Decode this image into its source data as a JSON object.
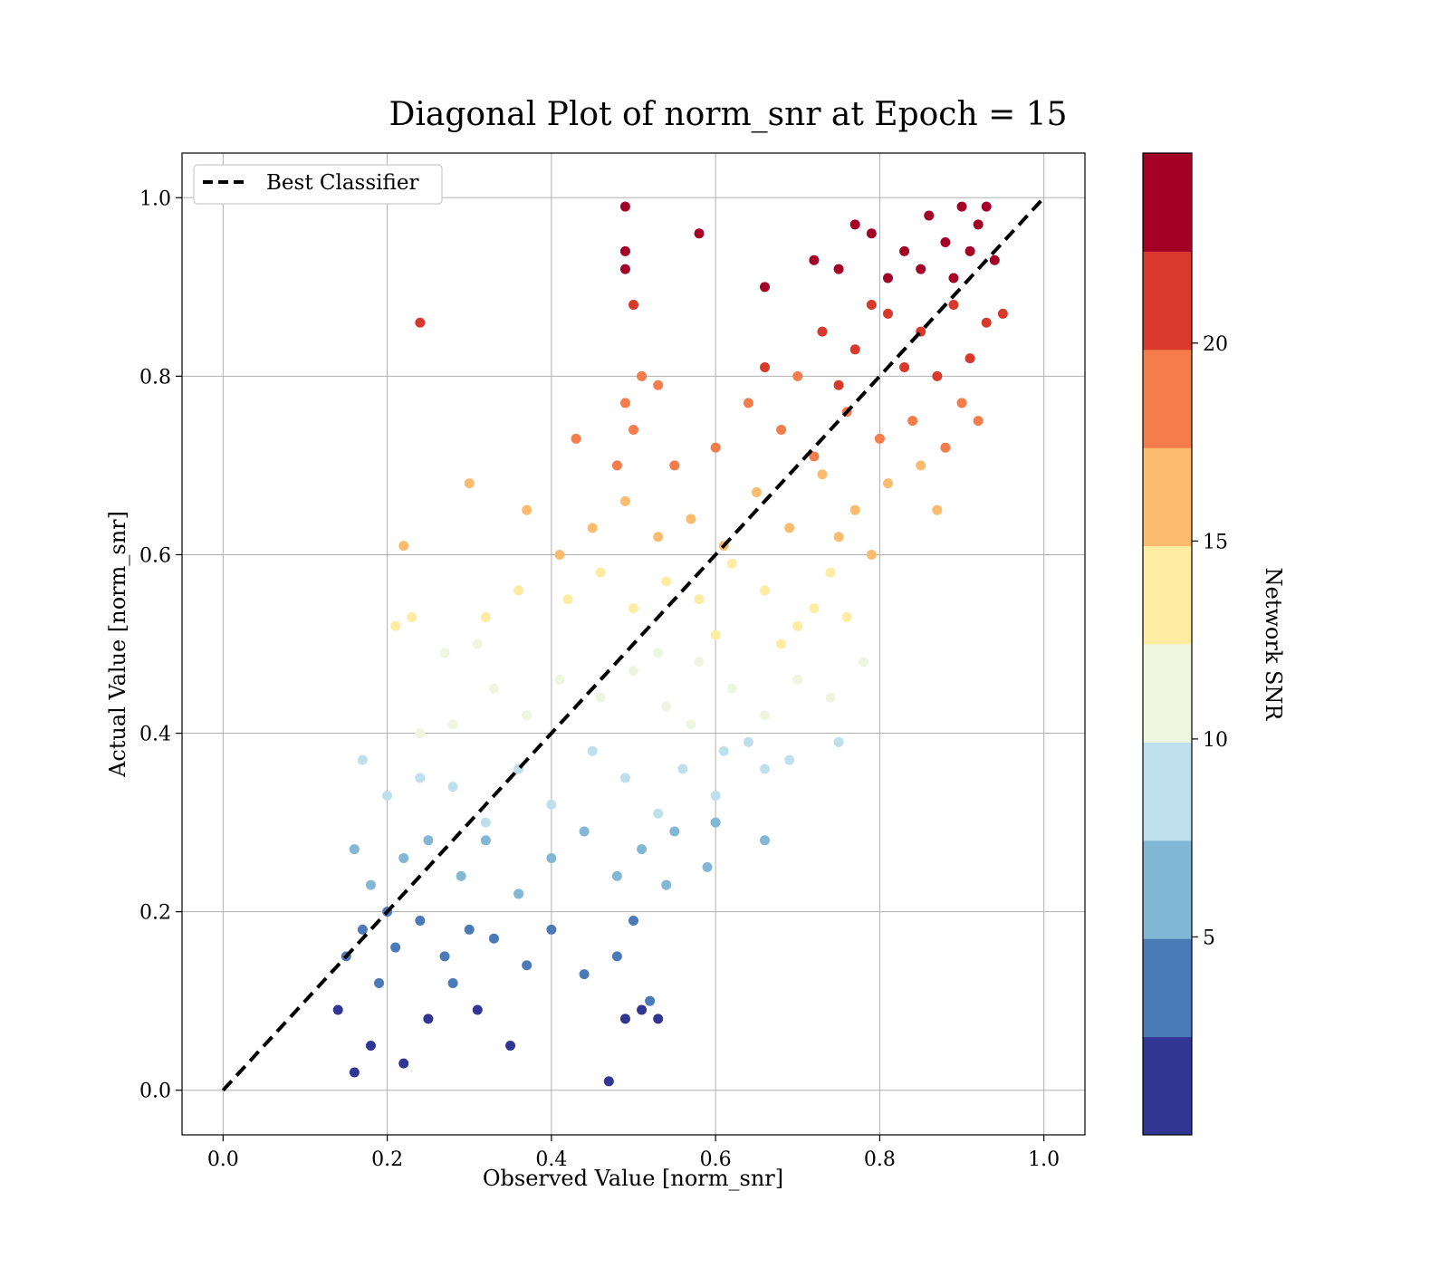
{
  "chart_data": {
    "type": "scatter",
    "title": "Diagonal Plot of norm_snr at Epoch = 15",
    "xlabel": "Observed Value [norm_snr]",
    "ylabel": "Actual Value [norm_snr]",
    "xlim": [
      -0.05,
      1.05
    ],
    "ylim": [
      -0.05,
      1.05
    ],
    "xticks": [
      "0.0",
      "0.2",
      "0.4",
      "0.6",
      "0.8",
      "1.0"
    ],
    "yticks": [
      "0.0",
      "0.2",
      "0.4",
      "0.6",
      "0.8",
      "1.0"
    ],
    "grid": true,
    "legend": {
      "placement": "top-left",
      "entries": [
        "Best Classifier"
      ]
    },
    "reference_line": {
      "name": "Best Classifier",
      "style": "dashed",
      "color": "#000000",
      "x": [
        0.0,
        1.0
      ],
      "y": [
        0.0,
        1.0
      ]
    },
    "colorbar": {
      "label": "Network SNR",
      "ticks": [
        "5",
        "10",
        "15",
        "20"
      ],
      "tick_values": [
        5,
        10,
        15,
        20
      ],
      "range": [
        0,
        24.8
      ],
      "levels": [
        "#313695",
        "#4575b4",
        "#74add1",
        "#abd9e9",
        "#e0f3f8",
        "#fee090",
        "#fdae61",
        "#f46d43",
        "#d73027",
        "#a50026"
      ],
      "level_colors": [
        "#313695",
        "#4a7ab7",
        "#82b7d6",
        "#bee0ec",
        "#eef6df",
        "#fdeca2",
        "#fbbc70",
        "#f57c4b",
        "#d8392a",
        "#a50026"
      ]
    },
    "scatter_points": {
      "note_on_values": "color of each point encodes Network SNR",
      "points": [
        [
          0.2,
          0.2,
          4.5
        ],
        [
          0.14,
          0.09,
          2
        ],
        [
          0.16,
          0.02,
          1
        ],
        [
          0.18,
          0.05,
          1.5
        ],
        [
          0.22,
          0.03,
          1
        ],
        [
          0.25,
          0.08,
          2
        ],
        [
          0.28,
          0.12,
          4
        ],
        [
          0.31,
          0.09,
          2
        ],
        [
          0.35,
          0.05,
          1
        ],
        [
          0.15,
          0.15,
          3.5
        ],
        [
          0.17,
          0.18,
          4
        ],
        [
          0.19,
          0.12,
          3.5
        ],
        [
          0.21,
          0.16,
          4
        ],
        [
          0.24,
          0.19,
          4.5
        ],
        [
          0.27,
          0.15,
          4
        ],
        [
          0.3,
          0.18,
          4.5
        ],
        [
          0.33,
          0.17,
          4.5
        ],
        [
          0.37,
          0.14,
          3.5
        ],
        [
          0.4,
          0.18,
          4.5
        ],
        [
          0.44,
          0.13,
          3.5
        ],
        [
          0.48,
          0.15,
          3.5
        ],
        [
          0.5,
          0.19,
          4.5
        ],
        [
          0.52,
          0.1,
          3
        ],
        [
          0.49,
          0.08,
          2
        ],
        [
          0.47,
          0.01,
          1
        ],
        [
          0.53,
          0.08,
          2
        ],
        [
          0.51,
          0.09,
          2
        ],
        [
          0.16,
          0.27,
          6.5
        ],
        [
          0.18,
          0.23,
          6
        ],
        [
          0.22,
          0.26,
          6.5
        ],
        [
          0.25,
          0.28,
          7
        ],
        [
          0.29,
          0.24,
          6
        ],
        [
          0.32,
          0.28,
          7
        ],
        [
          0.36,
          0.22,
          5.5
        ],
        [
          0.4,
          0.26,
          6.5
        ],
        [
          0.44,
          0.29,
          7
        ],
        [
          0.48,
          0.24,
          6
        ],
        [
          0.51,
          0.27,
          6.5
        ],
        [
          0.55,
          0.29,
          7
        ],
        [
          0.6,
          0.3,
          7
        ],
        [
          0.66,
          0.28,
          7
        ],
        [
          0.59,
          0.25,
          6.5
        ],
        [
          0.54,
          0.23,
          6
        ],
        [
          0.17,
          0.37,
          9
        ],
        [
          0.2,
          0.33,
          8.5
        ],
        [
          0.24,
          0.35,
          9
        ],
        [
          0.28,
          0.34,
          9
        ],
        [
          0.32,
          0.3,
          8
        ],
        [
          0.36,
          0.36,
          9
        ],
        [
          0.4,
          0.32,
          8.5
        ],
        [
          0.45,
          0.38,
          9.5
        ],
        [
          0.49,
          0.35,
          9
        ],
        [
          0.53,
          0.31,
          8
        ],
        [
          0.56,
          0.36,
          9
        ],
        [
          0.61,
          0.38,
          9.5
        ],
        [
          0.66,
          0.36,
          9
        ],
        [
          0.69,
          0.37,
          9.5
        ],
        [
          0.75,
          0.39,
          9.5
        ],
        [
          0.6,
          0.33,
          8.5
        ],
        [
          0.64,
          0.39,
          9.5
        ],
        [
          0.28,
          0.41,
          10.5
        ],
        [
          0.33,
          0.45,
          11
        ],
        [
          0.37,
          0.42,
          10.5
        ],
        [
          0.41,
          0.46,
          11
        ],
        [
          0.46,
          0.44,
          11
        ],
        [
          0.5,
          0.47,
          11.5
        ],
        [
          0.54,
          0.43,
          10.5
        ],
        [
          0.58,
          0.48,
          11.5
        ],
        [
          0.62,
          0.45,
          11
        ],
        [
          0.66,
          0.42,
          10.5
        ],
        [
          0.7,
          0.46,
          11
        ],
        [
          0.74,
          0.44,
          11
        ],
        [
          0.78,
          0.48,
          11.5
        ],
        [
          0.27,
          0.49,
          12
        ],
        [
          0.31,
          0.5,
          12
        ],
        [
          0.53,
          0.49,
          12
        ],
        [
          0.57,
          0.41,
          10.5
        ],
        [
          0.24,
          0.4,
          10
        ],
        [
          0.21,
          0.52,
          13
        ],
        [
          0.23,
          0.53,
          13
        ],
        [
          0.32,
          0.53,
          13
        ],
        [
          0.36,
          0.56,
          13.5
        ],
        [
          0.42,
          0.55,
          13.5
        ],
        [
          0.46,
          0.58,
          14
        ],
        [
          0.5,
          0.54,
          13
        ],
        [
          0.54,
          0.57,
          14
        ],
        [
          0.58,
          0.55,
          13.5
        ],
        [
          0.62,
          0.59,
          14.5
        ],
        [
          0.66,
          0.56,
          14
        ],
        [
          0.7,
          0.52,
          13
        ],
        [
          0.74,
          0.58,
          14.5
        ],
        [
          0.72,
          0.54,
          13.5
        ],
        [
          0.76,
          0.53,
          13
        ],
        [
          0.68,
          0.5,
          12.5
        ],
        [
          0.6,
          0.51,
          12.5
        ],
        [
          0.22,
          0.61,
          15
        ],
        [
          0.3,
          0.68,
          16
        ],
        [
          0.37,
          0.65,
          16
        ],
        [
          0.41,
          0.6,
          15
        ],
        [
          0.45,
          0.63,
          15.5
        ],
        [
          0.49,
          0.66,
          16
        ],
        [
          0.53,
          0.62,
          15.5
        ],
        [
          0.57,
          0.64,
          15.5
        ],
        [
          0.61,
          0.61,
          15
        ],
        [
          0.65,
          0.67,
          16
        ],
        [
          0.69,
          0.63,
          15.5
        ],
        [
          0.73,
          0.69,
          16.5
        ],
        [
          0.77,
          0.65,
          16
        ],
        [
          0.81,
          0.68,
          16.5
        ],
        [
          0.85,
          0.7,
          17
        ],
        [
          0.87,
          0.65,
          16
        ],
        [
          0.79,
          0.6,
          15
        ],
        [
          0.75,
          0.62,
          15
        ],
        [
          0.43,
          0.73,
          18
        ],
        [
          0.48,
          0.7,
          17.5
        ],
        [
          0.5,
          0.74,
          18
        ],
        [
          0.55,
          0.7,
          17.5
        ],
        [
          0.6,
          0.72,
          18
        ],
        [
          0.64,
          0.77,
          19
        ],
        [
          0.68,
          0.74,
          18
        ],
        [
          0.72,
          0.71,
          17.5
        ],
        [
          0.76,
          0.76,
          18.5
        ],
        [
          0.8,
          0.73,
          18
        ],
        [
          0.84,
          0.75,
          18.5
        ],
        [
          0.88,
          0.72,
          18
        ],
        [
          0.9,
          0.77,
          19
        ],
        [
          0.92,
          0.75,
          18.5
        ],
        [
          0.7,
          0.8,
          19.5
        ],
        [
          0.49,
          0.77,
          19
        ],
        [
          0.51,
          0.8,
          19.5
        ],
        [
          0.24,
          0.86,
          21
        ],
        [
          0.5,
          0.88,
          21
        ],
        [
          0.53,
          0.79,
          19.5
        ],
        [
          0.66,
          0.81,
          20
        ],
        [
          0.73,
          0.85,
          20.5
        ],
        [
          0.77,
          0.83,
          20.5
        ],
        [
          0.81,
          0.87,
          21
        ],
        [
          0.85,
          0.85,
          21
        ],
        [
          0.89,
          0.88,
          21.5
        ],
        [
          0.93,
          0.86,
          21
        ],
        [
          0.83,
          0.81,
          20
        ],
        [
          0.87,
          0.8,
          20
        ],
        [
          0.79,
          0.88,
          21.5
        ],
        [
          0.75,
          0.79,
          20
        ],
        [
          0.91,
          0.82,
          20.5
        ],
        [
          0.95,
          0.87,
          21
        ],
        [
          0.49,
          0.99,
          23
        ],
        [
          0.49,
          0.94,
          23
        ],
        [
          0.49,
          0.92,
          23
        ],
        [
          0.58,
          0.96,
          23
        ],
        [
          0.66,
          0.9,
          22.5
        ],
        [
          0.75,
          0.92,
          23
        ],
        [
          0.79,
          0.96,
          23.5
        ],
        [
          0.83,
          0.94,
          23
        ],
        [
          0.86,
          0.98,
          24
        ],
        [
          0.88,
          0.95,
          23.5
        ],
        [
          0.9,
          0.99,
          24
        ],
        [
          0.92,
          0.97,
          24
        ],
        [
          0.94,
          0.93,
          23.5
        ],
        [
          0.81,
          0.91,
          23
        ],
        [
          0.77,
          0.97,
          24
        ],
        [
          0.72,
          0.93,
          23
        ],
        [
          0.85,
          0.92,
          23
        ],
        [
          0.89,
          0.91,
          23
        ],
        [
          0.91,
          0.94,
          23.5
        ],
        [
          0.93,
          0.99,
          24
        ]
      ]
    }
  }
}
